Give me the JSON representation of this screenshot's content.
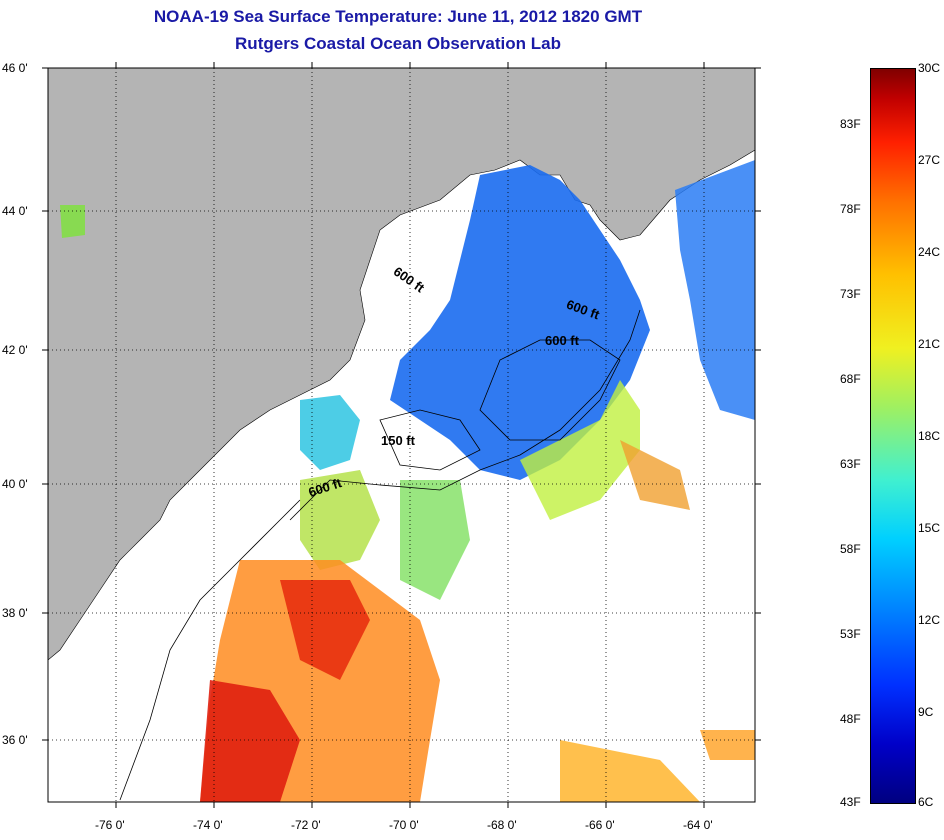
{
  "title": {
    "line1": "NOAA-19 Sea Surface Temperature:  June 11, 2012 1820 GMT",
    "line2": "Rutgers Coastal Ocean Observation Lab"
  },
  "map": {
    "lat_labels": [
      "46 0'",
      "44 0'",
      "42 0'",
      "40 0'",
      "38 0'",
      "36 0'"
    ],
    "lon_labels": [
      "-76 0'",
      "-74 0'",
      "-72 0'",
      "-70 0'",
      "-68 0'",
      "-66 0'",
      "-64 0'"
    ],
    "depth_contours": [
      "600 ft",
      "600 ft",
      "600 ft",
      "150 ft",
      "600 ft"
    ],
    "colors": {
      "land": "#b4b4b4",
      "cold_water": "#1a6cf0",
      "warm_water": "#e83010"
    }
  },
  "colorbar": {
    "celsius_labels": [
      "30C",
      "27C",
      "24C",
      "21C",
      "18C",
      "15C",
      "12C",
      "9C",
      "6C"
    ],
    "fahrenheit_labels": [
      "83F",
      "78F",
      "73F",
      "68F",
      "63F",
      "58F",
      "53F",
      "48F",
      "43F"
    ]
  }
}
